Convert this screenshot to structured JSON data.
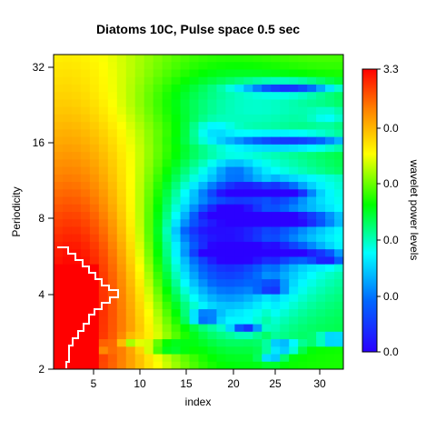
{
  "chart_data": {
    "type": "heatmap",
    "title": "Diatoms 10C, Pulse space 0.5 sec",
    "xlabel": "index",
    "ylabel": "Periodicity",
    "x_range": [
      1,
      32
    ],
    "y_range": [
      2,
      33
    ],
    "y_scale": "log2",
    "x_ticks": [
      "5",
      "10",
      "15",
      "20",
      "25",
      "30"
    ],
    "y_ticks": [
      "2",
      "4",
      "8",
      "16",
      "32"
    ],
    "grid": false,
    "colorbar": {
      "label": "wavelet power levels",
      "tick_labels": [
        "3.3",
        "0.0",
        "0.0",
        "0.0",
        "0.0",
        "0.0"
      ],
      "colormap": "rainbow blue-to-red",
      "position": "right"
    },
    "significance_contour": {
      "color": "#ffffff",
      "description": "white significance boundary in lower-left"
    },
    "colors": {
      "low": "#2b00ff",
      "mid": "#00ff00",
      "high": "#ff0000"
    }
  }
}
